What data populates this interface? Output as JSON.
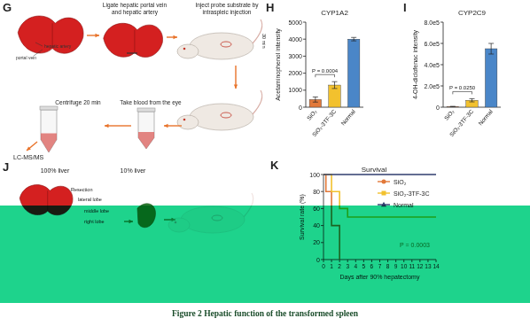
{
  "figure_caption": "Figure 2 Hepatic function of the transformed spleen",
  "diagram": {
    "G": {
      "label": "G",
      "ligate": [
        "Ligate hepatic portal vein",
        "and hepatic artery"
      ],
      "inject": [
        "Inject probe substrate by",
        "intraspleic injection"
      ],
      "wait": "30 min",
      "blood": "Take blood from the eye",
      "centrifuge": "Centrifuge 20 min",
      "analysis": "LC-MS/MS",
      "artery": "hepatic artery",
      "vein": "portal vein"
    },
    "J": {
      "label": "J",
      "full": "100% liver",
      "partial": "10% liver",
      "resection": "Resection",
      "lobes": [
        "lateral lobe",
        "middle lobe",
        "right lobe"
      ]
    }
  },
  "chart_data": [
    {
      "type": "bar",
      "panel": "H",
      "title": "CYP1A2",
      "y_label": "Acetaminophenol intensity",
      "categories": [
        "SiO₂",
        "SiO₂-3TF-3C",
        "Normal"
      ],
      "values": [
        450,
        1300,
        4000
      ],
      "errors": [
        150,
        200,
        100
      ],
      "colors": [
        "#e2793a",
        "#f2c12e",
        "#4a86c8"
      ],
      "ylim": [
        0,
        5000
      ],
      "yticks": [
        0,
        1000,
        2000,
        3000,
        4000,
        5000
      ],
      "annotations": [
        "P = 0.0004"
      ]
    },
    {
      "type": "bar",
      "panel": "I",
      "title": "CYP2C9",
      "y_label": "4-OH-diclofenac intensity",
      "categories": [
        "SiO₂",
        "SiO₂-3TF-3C",
        "Normal"
      ],
      "values": [
        5000,
        65000,
        550000
      ],
      "errors": [
        3000,
        15000,
        50000
      ],
      "colors": [
        "#e2793a",
        "#f2c12e",
        "#4a86c8"
      ],
      "ylim": [
        0,
        800000
      ],
      "yticks": [
        0,
        {
          "value": 200000,
          "label": "2.0e5"
        },
        {
          "value": 400000,
          "label": "4.0e5"
        },
        {
          "value": 600000,
          "label": "6.0e5"
        },
        {
          "value": 800000,
          "label": "8.0e5"
        }
      ],
      "annotations": [
        "P = 0.0250"
      ]
    },
    {
      "type": "line",
      "panel": "K",
      "title": "Survival",
      "x_label": "Days after 90% hepatectomy",
      "y_label": "Survival rate (%)",
      "series": [
        {
          "name": "SiO₂",
          "color": "#e2793a",
          "marker": "circle",
          "x": [
            0,
            0.3,
            0.3,
            1,
            1,
            2,
            2
          ],
          "values": [
            100,
            100,
            80,
            80,
            40,
            40,
            0
          ]
        },
        {
          "name": "SiO₂-3TF-3C",
          "color": "#f2c12e",
          "marker": "square",
          "x": [
            0,
            1,
            1,
            2,
            2,
            3,
            3,
            14
          ],
          "values": [
            100,
            100,
            80,
            80,
            60,
            60,
            50,
            50
          ]
        },
        {
          "name": "Normal",
          "color": "#2f3c6e",
          "marker": "triangle",
          "x": [
            0,
            14
          ],
          "values": [
            100,
            100
          ]
        }
      ],
      "xlim": [
        0,
        14
      ],
      "xticks": [
        0,
        1,
        2,
        3,
        4,
        5,
        6,
        7,
        8,
        9,
        10,
        11,
        12,
        13,
        14
      ],
      "ylim": [
        0,
        100
      ],
      "yticks": [
        0,
        20,
        40,
        60,
        80,
        100
      ],
      "legend": "upper right",
      "annotations": [
        "P = 0.0003"
      ]
    }
  ]
}
